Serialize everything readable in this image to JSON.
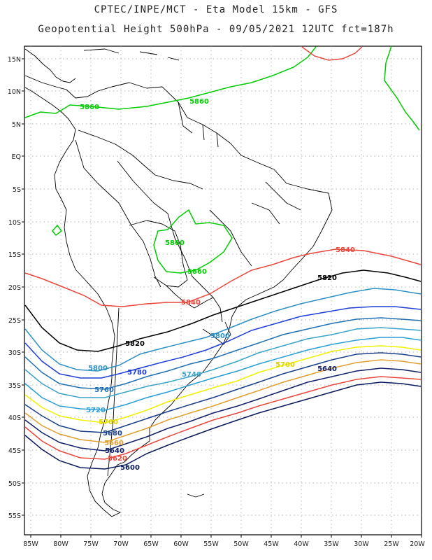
{
  "title": {
    "line1": "CPTEC/INPE/MCT -  Eta Model 15km - GFS",
    "line2": "Geopotential Height 500hPa - 09/05/2021 12UTC fct=187h"
  },
  "axes": {
    "lat_labels": [
      "15N",
      "10N",
      "5N",
      "EQ",
      "5S",
      "10S",
      "15S",
      "20S",
      "25S",
      "30S",
      "35S",
      "40S",
      "45S",
      "50S",
      "55S"
    ],
    "lon_labels": [
      "85W",
      "80W",
      "75W",
      "70W",
      "65W",
      "60W",
      "55W",
      "50W",
      "45W",
      "40W",
      "35W",
      "30W",
      "25W",
      "20W"
    ],
    "lat_range": [
      -58,
      16
    ],
    "lon_range": [
      -86,
      -20
    ]
  },
  "contours": [
    {
      "level": "5860",
      "color": "#00cc00",
      "labels": [
        "5860",
        "5860",
        "5860",
        "5860"
      ]
    },
    {
      "level": "5840",
      "color": "#e8473c",
      "labels": [
        "5840",
        "5840"
      ]
    },
    {
      "level": "5820",
      "color": "#000000",
      "labels": [
        "5820",
        "5820"
      ]
    },
    {
      "level": "5800",
      "color": "#2d8fc4",
      "labels": [
        "5800",
        "5800"
      ]
    },
    {
      "level": "5780",
      "color": "#1f3fd6",
      "labels": [
        "5780"
      ]
    },
    {
      "level": "5760",
      "color": "#2070b4",
      "labels": [
        "5760"
      ]
    },
    {
      "level": "5740",
      "color": "#3aa3c8",
      "labels": [
        "5740"
      ]
    },
    {
      "level": "5720",
      "color": "#2a9fd6",
      "labels": [
        "5720"
      ]
    },
    {
      "level": "5700",
      "color": "#f0f000",
      "labels": [
        "5700",
        "5700"
      ]
    },
    {
      "level": "5680",
      "color": "#1a3f8a",
      "labels": [
        "5680"
      ]
    },
    {
      "level": "5660",
      "color": "#e0a030",
      "labels": [
        "5660"
      ]
    },
    {
      "level": "5640",
      "color": "#10206a",
      "labels": [
        "5640",
        "5640"
      ]
    },
    {
      "level": "5620",
      "color": "#e8473c",
      "labels": [
        "5620"
      ]
    },
    {
      "level": "5600",
      "color": "#0a1a5c",
      "labels": [
        "5600"
      ]
    }
  ]
}
